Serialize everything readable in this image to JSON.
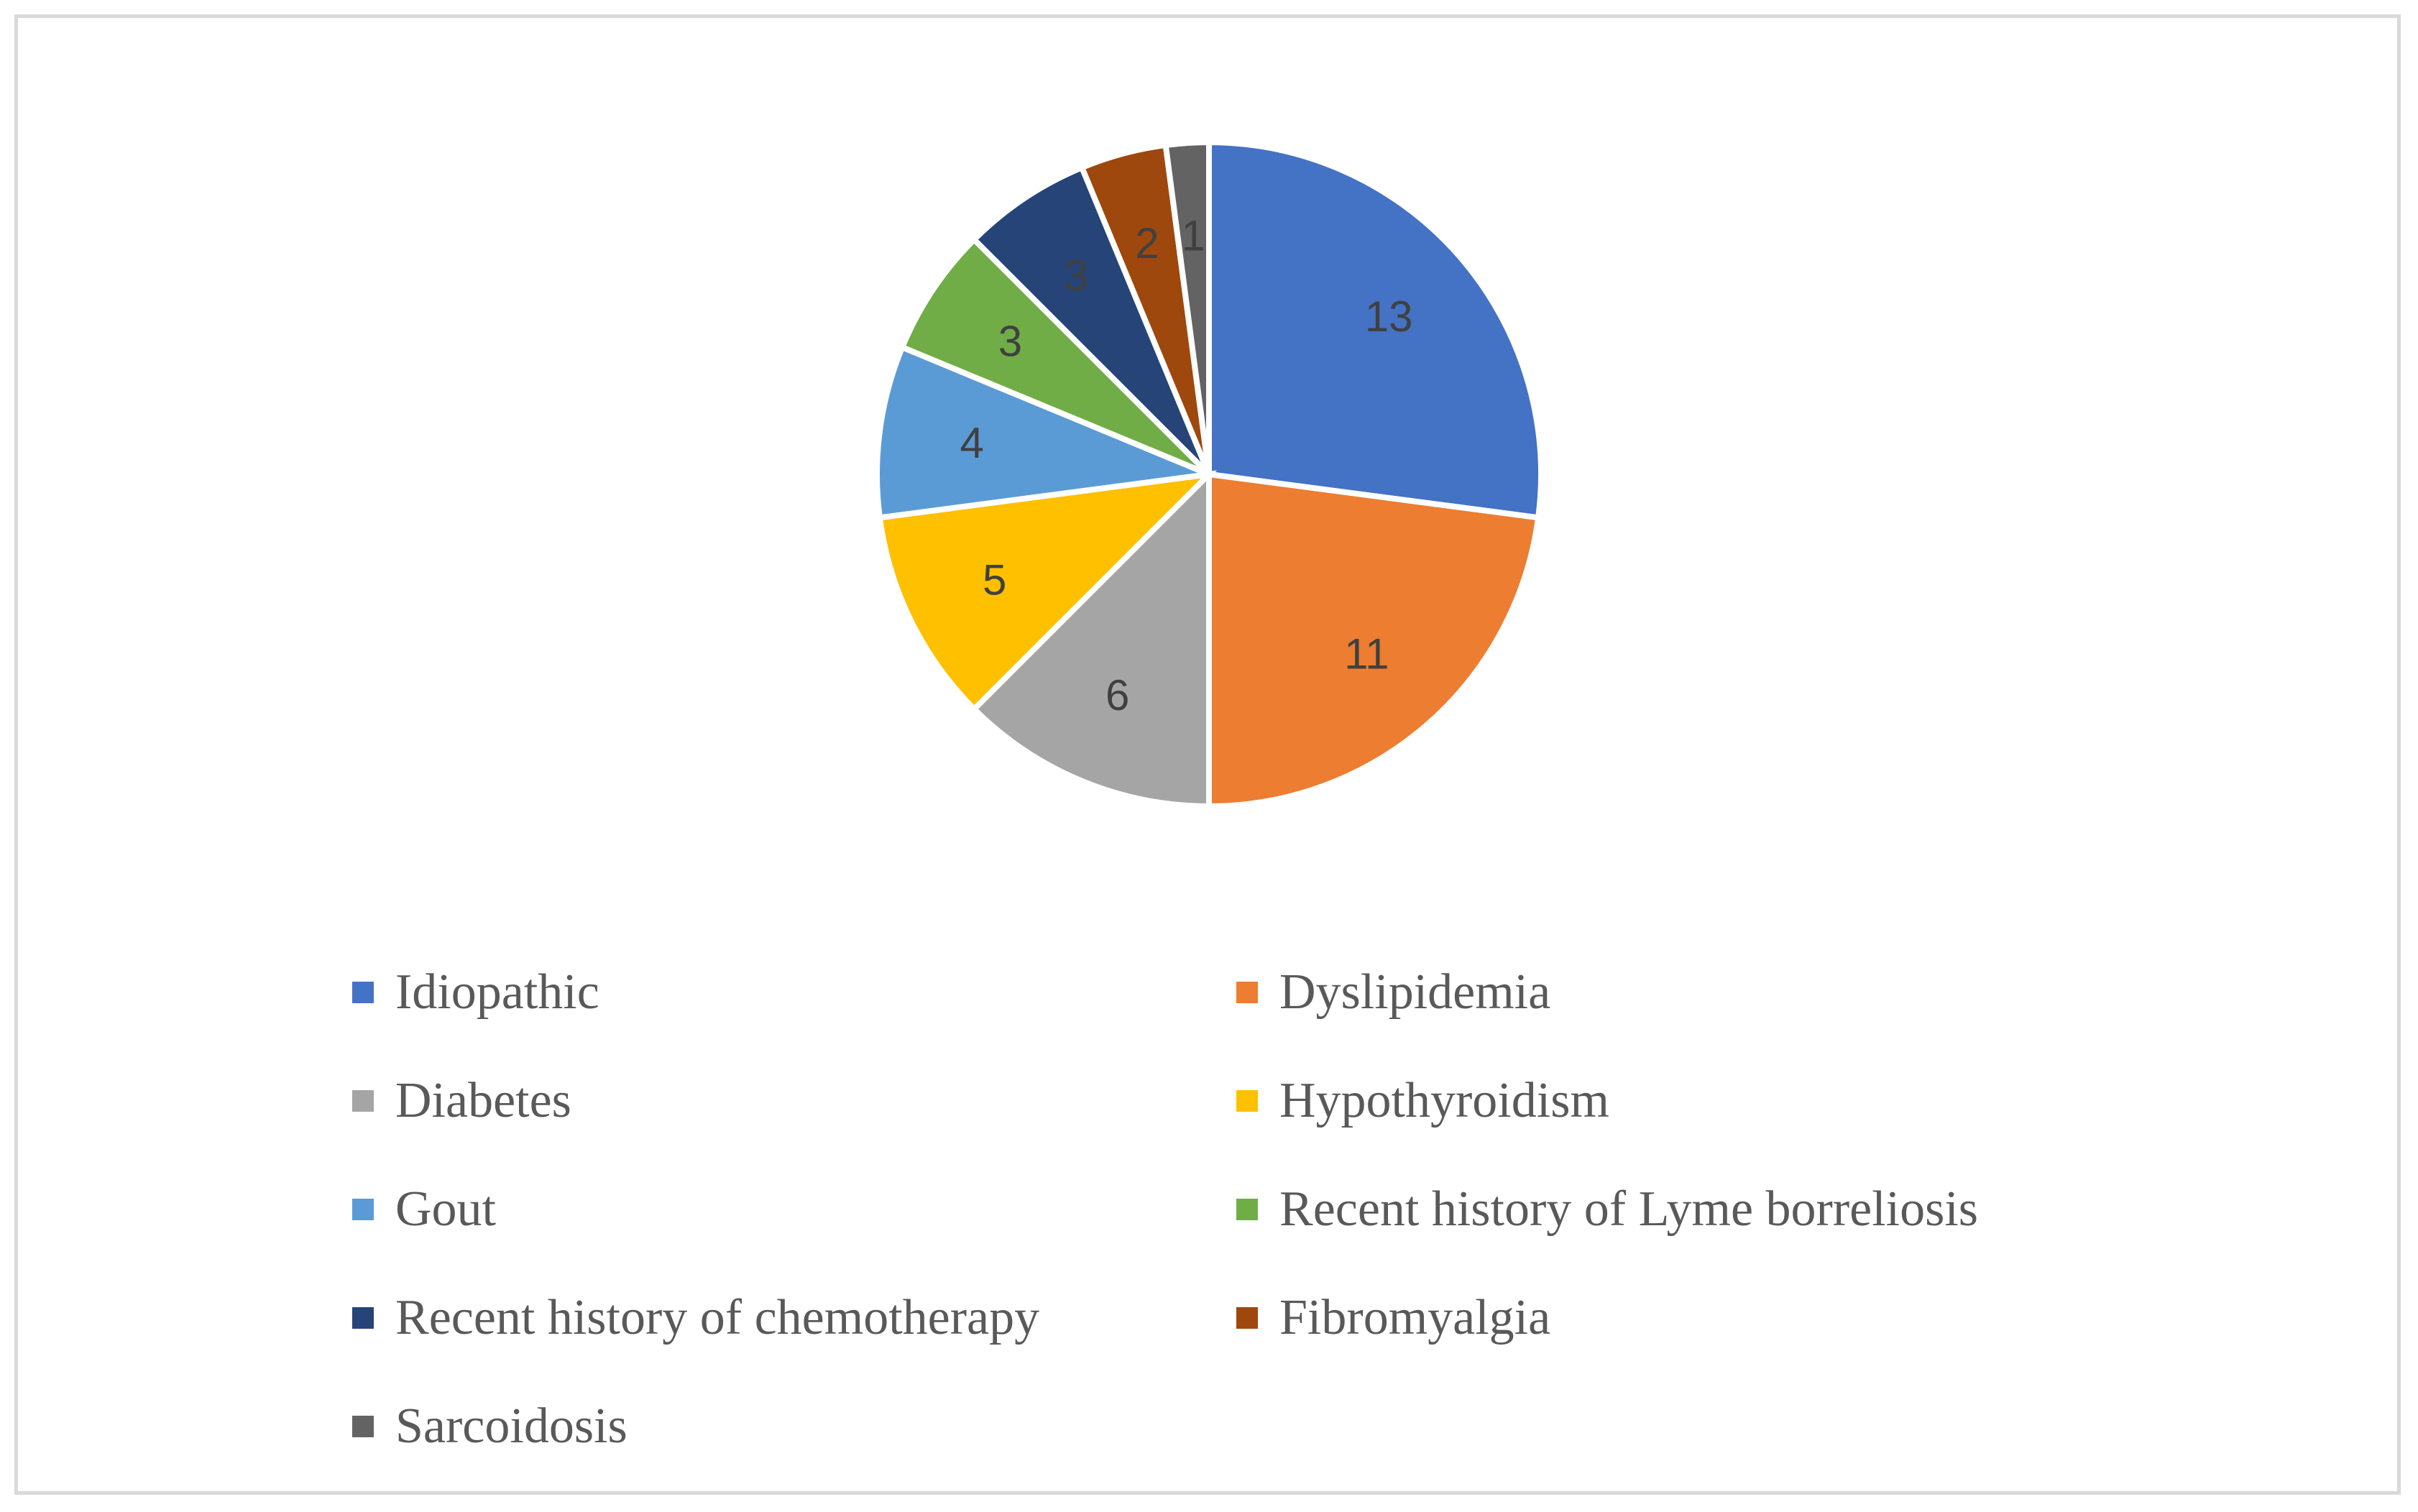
{
  "chart_data": {
    "type": "pie",
    "categories": [
      "Idiopathic",
      "Dyslipidemia",
      "Diabetes",
      "Hypothyroidism",
      "Gout",
      "Recent history of Lyme borreliosis",
      "Recent history of chemotherapy",
      "Fibromyalgia",
      "Sarcoidosis"
    ],
    "values": [
      13,
      11,
      6,
      5,
      4,
      3,
      3,
      2,
      1
    ],
    "data_labels": [
      "13",
      "11",
      "6",
      "5",
      "4",
      "3",
      "3",
      "2",
      "1"
    ],
    "colors": [
      "#4472c4",
      "#ed7d31",
      "#a5a5a5",
      "#ffc000",
      "#5b9bd5",
      "#70ad47",
      "#264478",
      "#9e480e",
      "#636363"
    ],
    "legend_position": "bottom",
    "start_angle": "12 o'clock, clockwise"
  }
}
